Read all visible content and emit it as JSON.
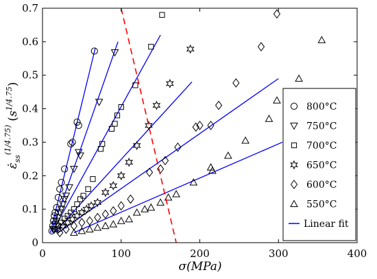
{
  "chart_data": {
    "type": "scatter",
    "xlim": [
      0,
      400
    ],
    "ylim": [
      0,
      0.7
    ],
    "x_ticks": [
      "0",
      "100",
      "200",
      "300",
      "400"
    ],
    "y_ticks": [
      "0",
      "0.1",
      "0.2",
      "0.3",
      "0.4",
      "0.5",
      "0.6",
      "0.7"
    ],
    "xlabel": "σ(MPa)",
    "ylabel": "ε̇ss^(1/4.75) (s^(1/4.75))",
    "grid": false,
    "legend_position": "right",
    "series": [
      {
        "name": "800°C",
        "marker": "circle",
        "points": [
          [
            12,
            0.035
          ],
          [
            13,
            0.05
          ],
          [
            14,
            0.065
          ],
          [
            15,
            0.08
          ],
          [
            16,
            0.09
          ],
          [
            18,
            0.105
          ],
          [
            20,
            0.135
          ],
          [
            22,
            0.16
          ],
          [
            24,
            0.18
          ],
          [
            28,
            0.22
          ],
          [
            36,
            0.295
          ],
          [
            38,
            0.3
          ],
          [
            44,
            0.36
          ],
          [
            46,
            0.35
          ],
          [
            66,
            0.572
          ]
        ],
        "fit": [
          [
            10,
            0.03
          ],
          [
            67,
            0.58
          ]
        ]
      },
      {
        "name": "750°C",
        "marker": "triangle-down",
        "points": [
          [
            14,
            0.04
          ],
          [
            16,
            0.055
          ],
          [
            18,
            0.065
          ],
          [
            20,
            0.075
          ],
          [
            22,
            0.09
          ],
          [
            24,
            0.1
          ],
          [
            26,
            0.115
          ],
          [
            28,
            0.13
          ],
          [
            30,
            0.14
          ],
          [
            34,
            0.165
          ],
          [
            40,
            0.22
          ],
          [
            46,
            0.27
          ],
          [
            48,
            0.26
          ],
          [
            72,
            0.42
          ],
          [
            92,
            0.568
          ]
        ],
        "fit": [
          [
            12,
            0.035
          ],
          [
            96,
            0.6
          ]
        ]
      },
      {
        "name": "700°C",
        "marker": "square",
        "points": [
          [
            16,
            0.04
          ],
          [
            20,
            0.05
          ],
          [
            24,
            0.06
          ],
          [
            28,
            0.072
          ],
          [
            32,
            0.08
          ],
          [
            36,
            0.09
          ],
          [
            40,
            0.1
          ],
          [
            44,
            0.115
          ],
          [
            48,
            0.13
          ],
          [
            52,
            0.14
          ],
          [
            58,
            0.16
          ],
          [
            64,
            0.19
          ],
          [
            74,
            0.28
          ],
          [
            76,
            0.295
          ],
          [
            88,
            0.34
          ],
          [
            92,
            0.355
          ],
          [
            95,
            0.38
          ],
          [
            100,
            0.405
          ],
          [
            118,
            0.47
          ],
          [
            138,
            0.585
          ],
          [
            152,
            0.68
          ]
        ],
        "fit": [
          [
            12,
            0.03
          ],
          [
            150,
            0.62
          ]
        ]
      },
      {
        "name": "650°C",
        "marker": "star",
        "points": [
          [
            20,
            0.04
          ],
          [
            26,
            0.05
          ],
          [
            32,
            0.06
          ],
          [
            38,
            0.07
          ],
          [
            44,
            0.08
          ],
          [
            50,
            0.09
          ],
          [
            56,
            0.1
          ],
          [
            62,
            0.11
          ],
          [
            70,
            0.12
          ],
          [
            80,
            0.15
          ],
          [
            90,
            0.17
          ],
          [
            100,
            0.2
          ],
          [
            110,
            0.24
          ],
          [
            120,
            0.29
          ],
          [
            135,
            0.35
          ],
          [
            145,
            0.41
          ],
          [
            162,
            0.475
          ],
          [
            188,
            0.578
          ]
        ],
        "fit": [
          [
            15,
            0.03
          ],
          [
            190,
            0.48
          ]
        ]
      },
      {
        "name": "600°C",
        "marker": "diamond",
        "points": [
          [
            22,
            0.03
          ],
          [
            30,
            0.04
          ],
          [
            40,
            0.05
          ],
          [
            50,
            0.06
          ],
          [
            60,
            0.065
          ],
          [
            70,
            0.075
          ],
          [
            80,
            0.085
          ],
          [
            90,
            0.095
          ],
          [
            100,
            0.11
          ],
          [
            112,
            0.13
          ],
          [
            136,
            0.21
          ],
          [
            150,
            0.22
          ],
          [
            156,
            0.245
          ],
          [
            172,
            0.285
          ],
          [
            195,
            0.345
          ],
          [
            200,
            0.35
          ],
          [
            214,
            0.35
          ],
          [
            224,
            0.41
          ],
          [
            246,
            0.477
          ],
          [
            278,
            0.585
          ],
          [
            298,
            0.683
          ]
        ],
        "fit": [
          [
            20,
            0.03
          ],
          [
            300,
            0.49
          ]
        ]
      },
      {
        "name": "550°C",
        "marker": "triangle-up",
        "points": [
          [
            40,
            0.03
          ],
          [
            50,
            0.035
          ],
          [
            60,
            0.04
          ],
          [
            70,
            0.045
          ],
          [
            80,
            0.05
          ],
          [
            90,
            0.055
          ],
          [
            100,
            0.065
          ],
          [
            110,
            0.07
          ],
          [
            120,
            0.09
          ],
          [
            130,
            0.1
          ],
          [
            138,
            0.105
          ],
          [
            150,
            0.12
          ],
          [
            160,
            0.135
          ],
          [
            170,
            0.145
          ],
          [
            192,
            0.18
          ],
          [
            214,
            0.225
          ],
          [
            216,
            0.215
          ],
          [
            236,
            0.26
          ],
          [
            258,
            0.305
          ],
          [
            288,
            0.37
          ],
          [
            298,
            0.425
          ],
          [
            326,
            0.49
          ],
          [
            355,
            0.605
          ]
        ],
        "fit": [
          [
            40,
            0.03
          ],
          [
            305,
            0.3
          ]
        ]
      }
    ],
    "fit_legend": "Linear fit",
    "dashed_boundary": [
      [
        100,
        0.7
      ],
      [
        170,
        0
      ]
    ],
    "colors": {
      "fit": "#0000ff",
      "boundary": "#ff0000",
      "marker": "#000000"
    }
  }
}
